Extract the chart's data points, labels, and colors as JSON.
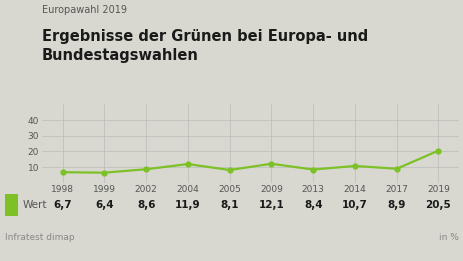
{
  "supertitle": "Europawahl 2019",
  "title": "Ergebnisse der Grünen bei Europa- und\nBundestagswahlen",
  "years": [
    1998,
    1999,
    2002,
    2004,
    2005,
    2009,
    2013,
    2014,
    2017,
    2019
  ],
  "values": [
    6.7,
    6.4,
    8.6,
    11.9,
    8.1,
    12.1,
    8.4,
    10.7,
    8.9,
    20.5
  ],
  "line_color": "#7dc126",
  "marker_color": "#7dc126",
  "bg_color": "#d8d8d0",
  "legend_bg": "#ffffff",
  "ylim": [
    0,
    50
  ],
  "yticks": [
    10,
    20,
    30,
    40
  ],
  "legend_label": "Wert",
  "footer_left": "Infratest dimap",
  "footer_right": "in %",
  "value_labels": [
    "6,7",
    "6,4",
    "8,6",
    "11,9",
    "8,1",
    "12,1",
    "8,4",
    "10,7",
    "8,9",
    "20,5"
  ],
  "title_fontsize": 10.5,
  "supertitle_fontsize": 7,
  "tick_fontsize": 6.5,
  "legend_fontsize": 7.5,
  "footer_fontsize": 6.5
}
